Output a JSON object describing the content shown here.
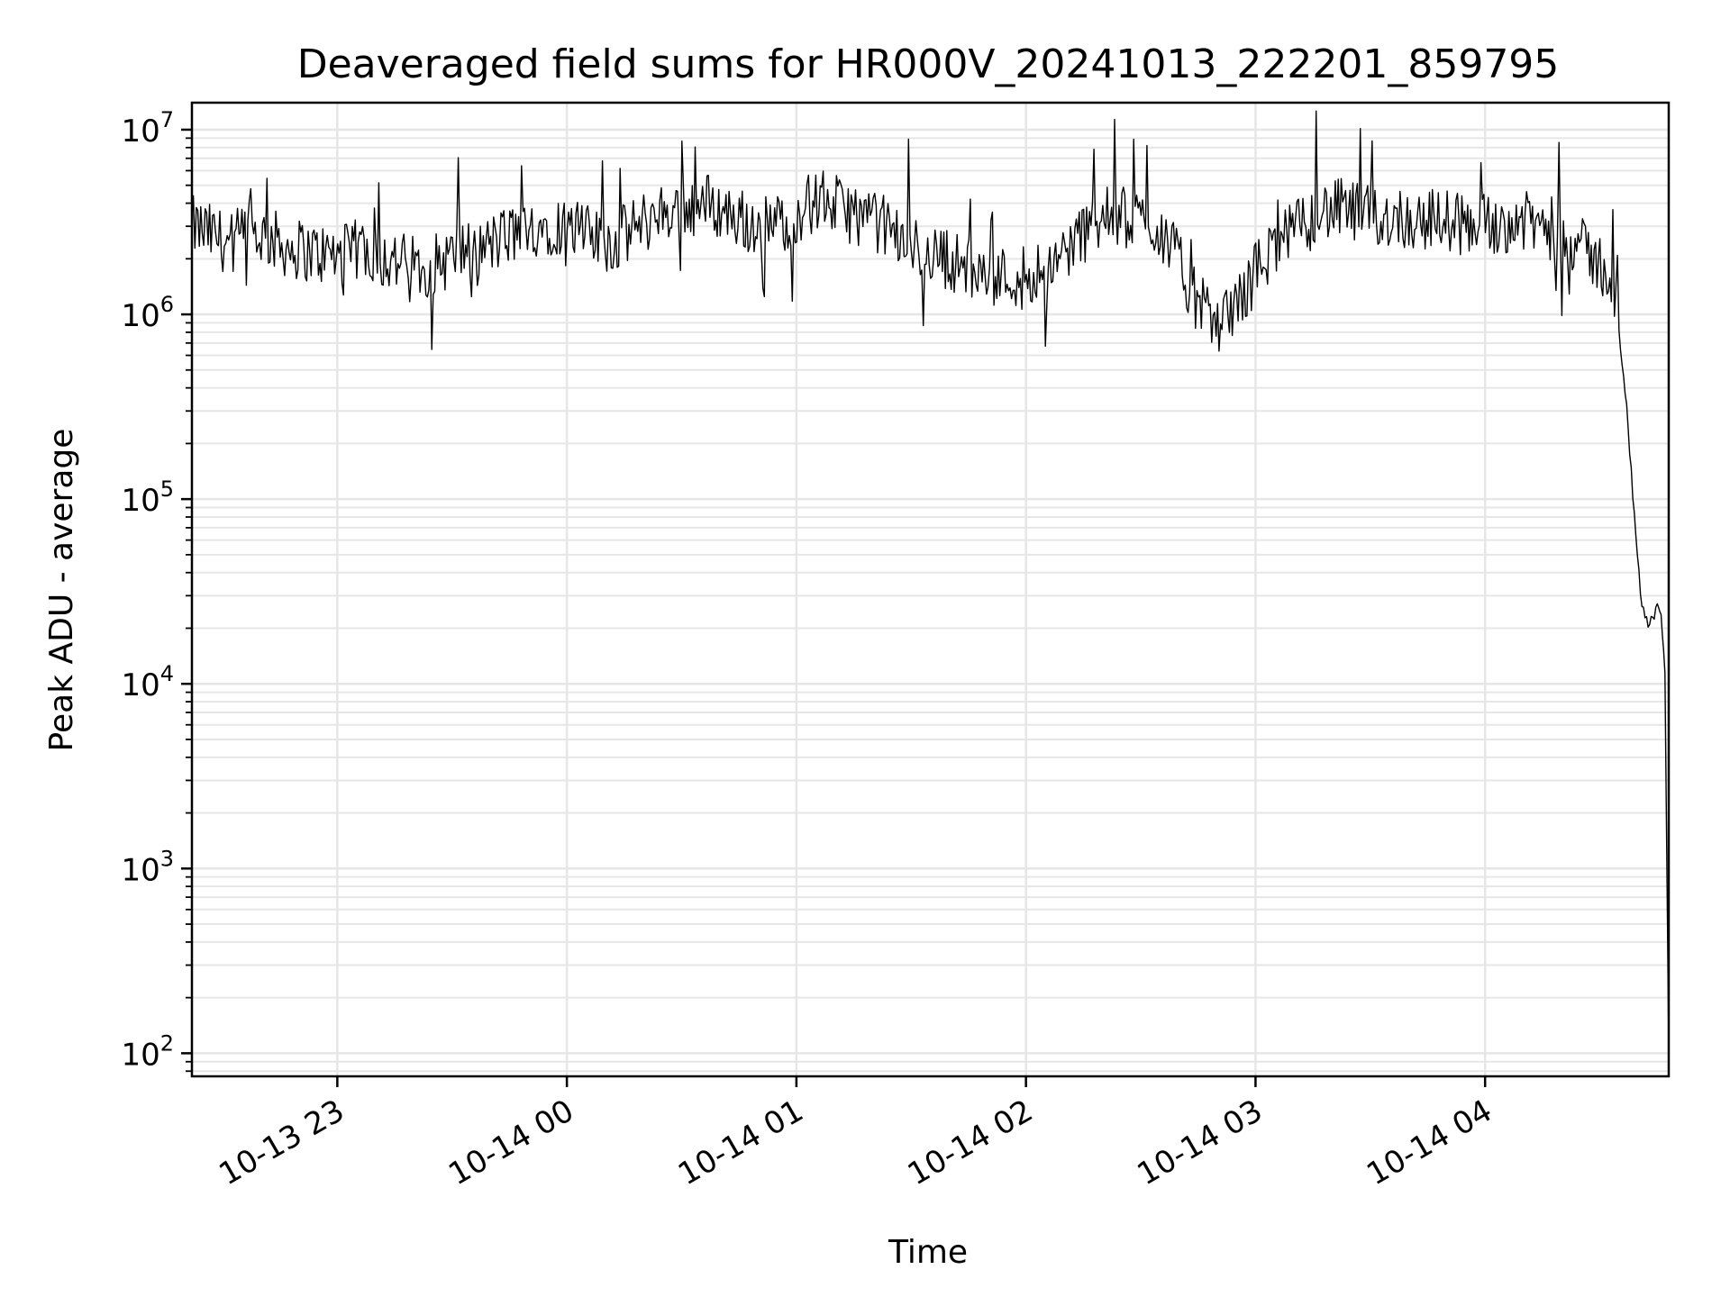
{
  "chart_data": {
    "type": "line",
    "title": "Deaveraged field sums for HR000V_20241013_222201_859795",
    "xlabel": "Time",
    "ylabel": "Peak ADU - average",
    "y_scale": "log",
    "ylim": [
      75,
      14000000
    ],
    "xlim": [
      "2024-10-13 22:22",
      "2024-10-14 04:48"
    ],
    "grid": true,
    "line_color": "#000000",
    "grid_color": "#e6e6e6",
    "x_ticks": [
      {
        "value": "2024-10-13 23:00",
        "label": "10-13 23"
      },
      {
        "value": "2024-10-14 00:00",
        "label": "10-14 00"
      },
      {
        "value": "2024-10-14 01:00",
        "label": "10-14 01"
      },
      {
        "value": "2024-10-14 02:00",
        "label": "10-14 02"
      },
      {
        "value": "2024-10-14 03:00",
        "label": "10-14 03"
      },
      {
        "value": "2024-10-14 04:00",
        "label": "10-14 04"
      }
    ],
    "y_ticks": [
      {
        "value": 100,
        "base": "10",
        "exp": "2"
      },
      {
        "value": 1000,
        "base": "10",
        "exp": "3"
      },
      {
        "value": 10000,
        "base": "10",
        "exp": "4"
      },
      {
        "value": 100000,
        "base": "10",
        "exp": "5"
      },
      {
        "value": 1000000,
        "base": "10",
        "exp": "6"
      },
      {
        "value": 10000000,
        "base": "10",
        "exp": "7"
      }
    ],
    "series": [
      {
        "x": [
          "2024-10-13 22:22",
          "2024-10-13 22:27",
          "2024-10-13 22:32",
          "2024-10-13 22:37",
          "2024-10-13 22:42",
          "2024-10-13 22:47",
          "2024-10-13 22:52",
          "2024-10-13 22:57",
          "2024-10-13 23:02",
          "2024-10-13 23:07",
          "2024-10-13 23:12",
          "2024-10-13 23:17",
          "2024-10-13 23:22",
          "2024-10-13 23:27",
          "2024-10-13 23:32",
          "2024-10-13 23:37",
          "2024-10-13 23:42",
          "2024-10-13 23:47",
          "2024-10-13 23:52",
          "2024-10-13 23:57",
          "2024-10-14 00:02",
          "2024-10-14 00:07",
          "2024-10-14 00:12",
          "2024-10-14 00:17",
          "2024-10-14 00:22",
          "2024-10-14 00:27",
          "2024-10-14 00:32",
          "2024-10-14 00:37",
          "2024-10-14 00:42",
          "2024-10-14 00:47",
          "2024-10-14 00:52",
          "2024-10-14 00:57",
          "2024-10-14 01:02",
          "2024-10-14 01:07",
          "2024-10-14 01:12",
          "2024-10-14 01:17",
          "2024-10-14 01:22",
          "2024-10-14 01:27",
          "2024-10-14 01:32",
          "2024-10-14 01:37",
          "2024-10-14 01:42",
          "2024-10-14 01:47",
          "2024-10-14 01:52",
          "2024-10-14 01:57",
          "2024-10-14 02:02",
          "2024-10-14 02:07",
          "2024-10-14 02:12",
          "2024-10-14 02:17",
          "2024-10-14 02:22",
          "2024-10-14 02:27",
          "2024-10-14 02:32",
          "2024-10-14 02:37",
          "2024-10-14 02:42",
          "2024-10-14 02:47",
          "2024-10-14 02:52",
          "2024-10-14 02:57",
          "2024-10-14 03:02",
          "2024-10-14 03:07",
          "2024-10-14 03:12",
          "2024-10-14 03:17",
          "2024-10-14 03:22",
          "2024-10-14 03:27",
          "2024-10-14 03:32",
          "2024-10-14 03:37",
          "2024-10-14 03:42",
          "2024-10-14 03:47",
          "2024-10-14 03:52",
          "2024-10-14 03:57",
          "2024-10-14 04:02",
          "2024-10-14 04:07",
          "2024-10-14 04:12",
          "2024-10-14 04:17",
          "2024-10-14 04:22",
          "2024-10-14 04:27",
          "2024-10-14 04:30",
          "2024-10-14 04:33",
          "2024-10-14 04:35",
          "2024-10-14 04:37",
          "2024-10-14 04:39",
          "2024-10-14 04:41",
          "2024-10-14 04:43",
          "2024-10-14 04:45",
          "2024-10-14 04:46",
          "2024-10-14 04:47",
          "2024-10-14 04:48"
        ],
        "y": [
          3000000,
          2700000,
          2400000,
          2800000,
          2600000,
          2300000,
          2200000,
          2100000,
          2100000,
          2300000,
          2000000,
          1900000,
          1800000,
          1900000,
          2200000,
          2200000,
          2500000,
          2800000,
          3000000,
          3100000,
          2800000,
          2600000,
          2400000,
          2900000,
          3300000,
          3700000,
          3800000,
          4000000,
          3500000,
          3200000,
          3000000,
          3200000,
          3800000,
          4200000,
          3700000,
          3400000,
          3100000,
          2600000,
          2200000,
          2100000,
          1900000,
          1700000,
          1600000,
          1600000,
          1700000,
          1900000,
          2400000,
          3000000,
          3400000,
          3300000,
          3200000,
          2600000,
          1500000,
          1000000,
          900000,
          1300000,
          2000000,
          2500000,
          3000000,
          3600000,
          3700000,
          3500000,
          3300000,
          3400000,
          3200000,
          3300000,
          3200000,
          3100000,
          3100000,
          3200000,
          3100000,
          3000000,
          2600000,
          2100000,
          1900000,
          1500000,
          800000,
          300000,
          80000,
          25000,
          20000,
          28000,
          25000,
          12000,
          100
        ]
      }
    ]
  }
}
